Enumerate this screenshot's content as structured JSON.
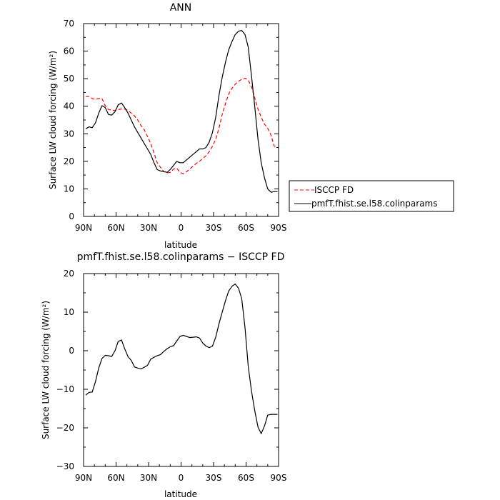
{
  "chart_data": [
    {
      "type": "line",
      "title": "ANN",
      "xlabel": "latitude",
      "ylabel": "Surface LW cloud forcing (W/m²)",
      "xlim": [
        90,
        -90
      ],
      "ylim": [
        0,
        70
      ],
      "xticks": [
        90,
        60,
        30,
        0,
        -30,
        -60,
        -90
      ],
      "xtick_labels": [
        "90N",
        "60N",
        "30N",
        "0",
        "30S",
        "60S",
        "90S"
      ],
      "yticks": [
        0,
        10,
        20,
        30,
        40,
        50,
        60,
        70
      ],
      "ytick_labels": [
        "0",
        "10",
        "20",
        "30",
        "40",
        "50",
        "60",
        "70"
      ],
      "grid": false,
      "legend_position": "outside-right",
      "series": [
        {
          "name": "ISCCP FD",
          "color": "#ff0000",
          "dash": "dashed",
          "x": [
            88,
            85,
            82,
            79,
            76,
            73,
            70,
            67,
            64,
            61,
            58,
            55,
            52,
            49,
            46,
            43,
            40,
            37,
            34,
            31,
            28,
            25,
            22,
            19,
            16,
            13,
            10,
            7,
            4,
            1,
            -2,
            -5,
            -8,
            -11,
            -14,
            -17,
            -20,
            -23,
            -26,
            -29,
            -32,
            -35,
            -38,
            -41,
            -44,
            -47,
            -50,
            -53,
            -56,
            -59,
            -62,
            -65,
            -68,
            -71,
            -74,
            -77,
            -80,
            -83,
            -86,
            -89
          ],
          "y": [
            43.5,
            43.5,
            42.8,
            42.5,
            42.8,
            42.8,
            40.2,
            38.8,
            38.5,
            38.5,
            38.8,
            39,
            39,
            38.5,
            37.5,
            36.5,
            35,
            33,
            31.5,
            29,
            26.5,
            23,
            19.5,
            17.8,
            16.3,
            15.8,
            16,
            17.2,
            17.5,
            16,
            15.5,
            16.2,
            17.2,
            18.2,
            19.2,
            20,
            21,
            22,
            23.5,
            25.5,
            28,
            32,
            37,
            41,
            44.5,
            46.5,
            48,
            49,
            49.8,
            50.2,
            49.5,
            47,
            43,
            39,
            36,
            33.5,
            32,
            29.5,
            25.5,
            25.5
          ]
        },
        {
          "name": "pmfT.fhist.se.l58.colinparams",
          "color": "#000000",
          "dash": "solid",
          "x": [
            88,
            85,
            82,
            79,
            76,
            73,
            70,
            67,
            64,
            61,
            58,
            55,
            52,
            49,
            46,
            43,
            40,
            37,
            34,
            31,
            28,
            25,
            22,
            19,
            16,
            13,
            10,
            7,
            4,
            1,
            -2,
            -5,
            -8,
            -11,
            -14,
            -17,
            -20,
            -23,
            -26,
            -29,
            -32,
            -35,
            -38,
            -41,
            -44,
            -47,
            -50,
            -53,
            -56,
            -59,
            -62,
            -65,
            -68,
            -71,
            -74,
            -77,
            -80,
            -83,
            -86,
            -89
          ],
          "y": [
            31.8,
            32.5,
            32.2,
            34,
            37.5,
            40.2,
            39.5,
            37,
            36.8,
            38,
            40.5,
            41.2,
            39.5,
            37.5,
            35,
            32.5,
            30.5,
            28.5,
            26.5,
            24.5,
            22.5,
            19.5,
            17,
            16.5,
            16.3,
            16,
            17,
            18.5,
            20,
            19.5,
            19.5,
            20.5,
            21.5,
            22.5,
            23.5,
            24.5,
            24.5,
            25,
            27,
            30.5,
            36,
            44,
            50.5,
            56,
            60.5,
            63.5,
            66,
            67.2,
            67.5,
            66,
            61.5,
            51,
            40,
            28,
            19.5,
            14,
            10,
            8.8,
            9,
            9
          ]
        }
      ]
    },
    {
      "type": "line",
      "title": "pmfT.fhist.se.l58.colinparams − ISCCP FD",
      "xlabel": "latitude",
      "ylabel": "Surface LW cloud forcing (W/m²)",
      "xlim": [
        90,
        -90
      ],
      "ylim": [
        -30,
        20
      ],
      "xticks": [
        90,
        60,
        30,
        0,
        -30,
        -60,
        -90
      ],
      "xtick_labels": [
        "90N",
        "60N",
        "30N",
        "0",
        "30S",
        "60S",
        "90S"
      ],
      "yticks": [
        -30,
        -20,
        -10,
        0,
        10,
        20
      ],
      "ytick_labels": [
        "−30",
        "−20",
        "−10",
        "0",
        "10",
        "20"
      ],
      "grid": false,
      "series": [
        {
          "color": "#000000",
          "dash": "solid",
          "x": [
            88,
            85,
            82,
            79,
            76,
            73,
            70,
            67,
            64,
            61,
            58,
            55,
            52,
            49,
            46,
            43,
            40,
            37,
            34,
            31,
            28,
            25,
            22,
            19,
            16,
            13,
            10,
            7,
            4,
            1,
            -2,
            -5,
            -8,
            -11,
            -14,
            -17,
            -20,
            -23,
            -26,
            -29,
            -32,
            -35,
            -38,
            -41,
            -44,
            -47,
            -50,
            -53,
            -56,
            -59,
            -62,
            -65,
            -68,
            -71,
            -74,
            -77,
            -80,
            -83,
            -86,
            -89
          ],
          "y": [
            -11.5,
            -10.8,
            -10.7,
            -8,
            -4.5,
            -2,
            -1.2,
            -1.3,
            -1.5,
            0,
            2.4,
            2.8,
            0.5,
            -1.5,
            -2.5,
            -4.2,
            -4.5,
            -4.7,
            -4.3,
            -3.8,
            -2.2,
            -1.7,
            -1.3,
            -1,
            -0.2,
            0.5,
            1,
            1.3,
            2.5,
            3.7,
            4,
            3.7,
            3.4,
            3.5,
            3.6,
            3.3,
            2,
            1.2,
            0.8,
            1.2,
            3.5,
            7,
            10,
            13,
            15.5,
            16.7,
            17.3,
            16.2,
            13.5,
            6,
            -4,
            -10.5,
            -15.5,
            -19.8,
            -21.5,
            -19.5,
            -16.7,
            -16.5,
            -16.5,
            -16.5
          ]
        }
      ]
    }
  ]
}
